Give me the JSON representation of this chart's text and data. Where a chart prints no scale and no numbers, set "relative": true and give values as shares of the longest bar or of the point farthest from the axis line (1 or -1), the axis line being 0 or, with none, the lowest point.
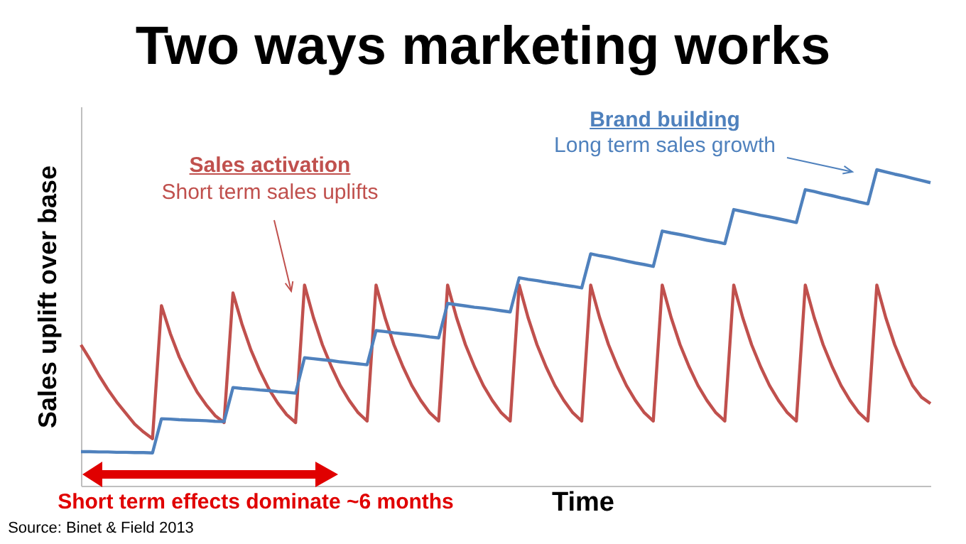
{
  "chart_data": {
    "type": "line",
    "title": "Two ways marketing works",
    "xlabel": "Time",
    "ylabel": "Sales uplift over base",
    "relative": true,
    "legend": false,
    "categories": [
      null,
      null,
      null,
      null,
      null,
      null,
      null,
      null,
      null,
      null,
      null,
      null,
      null,
      null,
      null,
      null,
      null,
      null,
      null,
      null,
      null,
      null,
      null,
      null,
      null,
      null,
      null,
      null,
      null,
      null,
      null,
      null,
      null,
      null,
      null,
      null,
      null,
      null,
      null,
      null,
      null,
      null,
      null,
      null,
      null,
      null,
      null,
      null,
      null,
      null,
      null,
      null,
      null,
      null,
      null,
      null,
      null,
      null,
      null,
      null,
      null,
      null,
      null,
      null,
      null,
      null,
      null,
      null,
      null,
      null,
      null,
      null,
      null,
      null,
      null,
      null,
      null,
      null,
      null,
      null,
      null,
      null,
      null,
      null,
      null,
      null,
      null,
      null,
      null,
      null,
      null,
      null,
      null,
      null,
      null,
      null
    ],
    "series": [
      {
        "name": "Sales activation",
        "color": "#c0504d",
        "values": [
          0.446,
          0.4,
          0.35,
          0.305,
          0.265,
          0.23,
          0.195,
          0.17,
          0.149,
          0.57,
          0.481,
          0.407,
          0.348,
          0.296,
          0.256,
          0.222,
          0.2,
          0.61,
          0.512,
          0.43,
          0.364,
          0.307,
          0.262,
          0.225,
          0.2,
          0.635,
          0.532,
          0.446,
          0.377,
          0.317,
          0.27,
          0.231,
          0.205,
          0.635,
          0.532,
          0.446,
          0.377,
          0.317,
          0.27,
          0.231,
          0.205,
          0.635,
          0.532,
          0.446,
          0.377,
          0.317,
          0.27,
          0.231,
          0.205,
          0.635,
          0.532,
          0.446,
          0.377,
          0.317,
          0.27,
          0.231,
          0.205,
          0.635,
          0.532,
          0.446,
          0.377,
          0.317,
          0.27,
          0.231,
          0.205,
          0.635,
          0.532,
          0.446,
          0.377,
          0.317,
          0.27,
          0.231,
          0.205,
          0.635,
          0.532,
          0.446,
          0.377,
          0.317,
          0.27,
          0.231,
          0.205,
          0.635,
          0.532,
          0.446,
          0.377,
          0.317,
          0.27,
          0.231,
          0.205,
          0.635,
          0.532,
          0.446,
          0.377,
          0.317,
          0.28,
          0.26
        ]
      },
      {
        "name": "Brand building",
        "color": "#4f81bd",
        "values": [
          0.108,
          0.108,
          0.107,
          0.107,
          0.106,
          0.106,
          0.105,
          0.105,
          0.104,
          0.212,
          0.211,
          0.209,
          0.208,
          0.207,
          0.206,
          0.204,
          0.203,
          0.311,
          0.308,
          0.306,
          0.303,
          0.301,
          0.298,
          0.296,
          0.293,
          0.405,
          0.402,
          0.399,
          0.396,
          0.392,
          0.389,
          0.386,
          0.383,
          0.491,
          0.488,
          0.484,
          0.481,
          0.478,
          0.475,
          0.471,
          0.468,
          0.577,
          0.573,
          0.569,
          0.565,
          0.562,
          0.558,
          0.554,
          0.55,
          0.658,
          0.653,
          0.649,
          0.644,
          0.64,
          0.635,
          0.631,
          0.626,
          0.734,
          0.728,
          0.723,
          0.717,
          0.711,
          0.705,
          0.7,
          0.694,
          0.806,
          0.8,
          0.795,
          0.789,
          0.783,
          0.777,
          0.772,
          0.766,
          0.874,
          0.868,
          0.862,
          0.856,
          0.851,
          0.845,
          0.839,
          0.833,
          0.937,
          0.931,
          0.924,
          0.918,
          0.911,
          0.905,
          0.898,
          0.892,
          1,
          0.993,
          0.986,
          0.98,
          0.973,
          0.966,
          0.959
        ]
      }
    ],
    "annotations": [
      "Short term sales uplifts",
      "Long term sales growth",
      "Short term effects dominate ~6 months",
      "Source: Binet & Field 2013"
    ]
  }
}
